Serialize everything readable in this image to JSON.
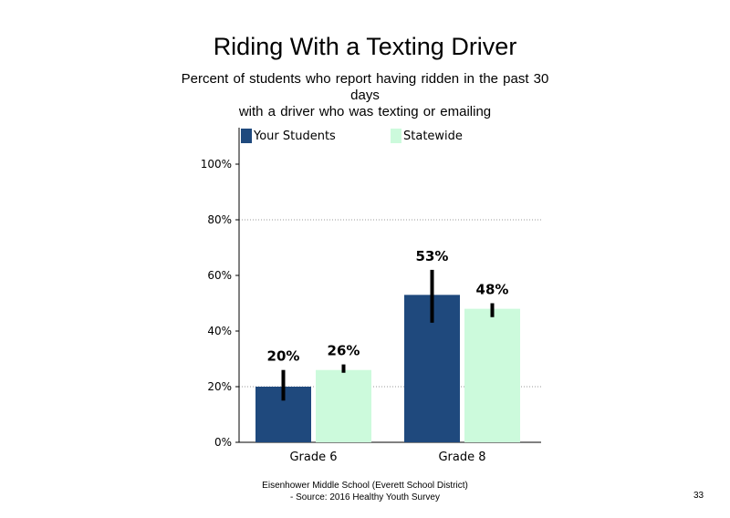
{
  "chart_data": {
    "type": "bar",
    "title": "Riding With a Texting Driver",
    "subtitle_lines": [
      "Percent of students who report having ridden in the past 30",
      "days",
      "with a driver who was texting or emailing"
    ],
    "categories": [
      "Grade 6",
      "Grade 8"
    ],
    "series": [
      {
        "name": "Your Students",
        "color": "#1f497d",
        "values": [
          20,
          53
        ],
        "errors": [
          [
            15,
            26
          ],
          [
            43,
            62
          ]
        ],
        "labels": [
          "20%",
          "53%"
        ]
      },
      {
        "name": "Statewide",
        "color": "#ccfadc",
        "values": [
          26,
          48
        ],
        "errors": [
          [
            25,
            28
          ],
          [
            45,
            50
          ]
        ],
        "labels": [
          "26%",
          "48%"
        ]
      }
    ],
    "yticks": [
      "0%",
      "20%",
      "40%",
      "60%",
      "80%",
      "100%"
    ],
    "ylim": [
      0,
      100
    ],
    "grid": "dotted at 20% and 80%",
    "legend_position": "top"
  },
  "footer": {
    "line1": "Eisenhower Middle School (Everett School District)",
    "line2": "- Source: 2016 Healthy  Youth Survey"
  },
  "page_number": "33"
}
